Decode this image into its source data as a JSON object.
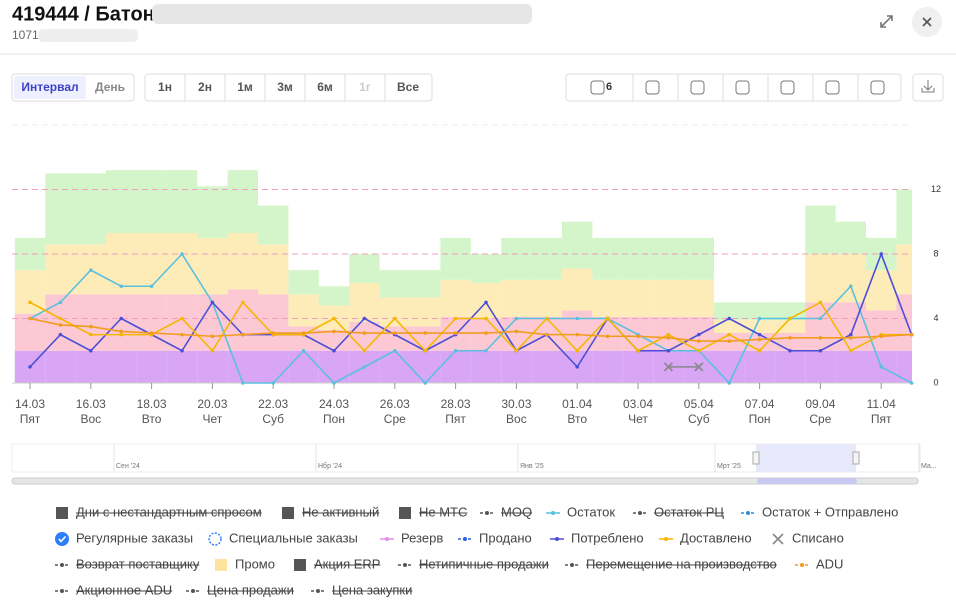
{
  "header": {
    "title": "419444 / Батон",
    "subtitle": "1071"
  },
  "toolbar": {
    "interval": [
      "Интервал",
      "День"
    ],
    "periods": [
      "1н",
      "2н",
      "1м",
      "3м",
      "6м",
      "1г",
      "Все"
    ],
    "active_period": null,
    "disabled_period": "1г",
    "truck_count": "6"
  },
  "navigator": {
    "labels": [
      "Сен '24",
      "Нбр '24",
      "Янв '25",
      "Мрт '25",
      "Ма..."
    ]
  },
  "chart_data": {
    "type": "line",
    "categories": [
      "14.03",
      null,
      "16.03",
      null,
      "18.03",
      null,
      "20.03",
      null,
      "22.03",
      null,
      "24.03",
      null,
      "26.03",
      null,
      "28.03",
      null,
      "30.03",
      null,
      "01.04",
      null,
      "03.04",
      null,
      "05.04",
      null,
      "07.04",
      null,
      "09.04",
      null,
      "11.04",
      null
    ],
    "weekdays": [
      "Пят",
      null,
      "Вос",
      null,
      "Вто",
      null,
      "Чет",
      null,
      "Суб",
      null,
      "Пон",
      null,
      "Сре",
      null,
      "Пят",
      null,
      "Вос",
      null,
      "Вто",
      null,
      "Чет",
      null,
      "Суб",
      null,
      "Пон",
      null,
      "Сре",
      null,
      "Пят",
      null
    ],
    "ylim": [
      0,
      16
    ],
    "yticks": [
      0,
      4,
      8,
      12
    ],
    "zones": [
      {
        "color": "#d8a6f5",
        "values": [
          2,
          2,
          2,
          2,
          2,
          2,
          2,
          2,
          2,
          2,
          2,
          2,
          2,
          2,
          2,
          2,
          2,
          2,
          2,
          2,
          2,
          2,
          2,
          2,
          2,
          2,
          2,
          2,
          2,
          2
        ]
      },
      {
        "color": "#fbc8d3",
        "values": [
          2.3,
          3.5,
          3.5,
          3.5,
          3.5,
          3.5,
          3.5,
          3.8,
          3.5,
          1.5,
          1.3,
          1.8,
          1.5,
          1.5,
          2.1,
          2,
          2.1,
          2.1,
          2.5,
          2.1,
          2.1,
          2.1,
          2.1,
          1.1,
          1.1,
          1.1,
          3,
          3,
          2.5,
          3.5
        ]
      },
      {
        "color": "#fdebb8",
        "values": [
          2.7,
          3.1,
          3.1,
          3.8,
          3.8,
          3.8,
          3.5,
          3.5,
          3.1,
          2,
          1.5,
          2.4,
          1.8,
          1.8,
          2.3,
          2.2,
          2.3,
          2.3,
          2.6,
          2.3,
          2.3,
          2.3,
          2.3,
          0.8,
          0.8,
          0.8,
          3,
          3,
          2.5,
          3.1
        ]
      },
      {
        "color": "#d3f5c9",
        "values": [
          2,
          4.4,
          4.4,
          3.9,
          3.9,
          3.9,
          3.2,
          3.9,
          2.4,
          1.5,
          1.2,
          1.8,
          1.7,
          1.7,
          2.6,
          1.8,
          2.6,
          2.6,
          2.9,
          2.6,
          2.6,
          2.6,
          2.6,
          1.1,
          1.1,
          1.1,
          3,
          2,
          2,
          3.4
        ]
      }
    ],
    "series": [
      {
        "name": "Остаток",
        "color": "#5bc0de",
        "values": [
          4,
          5,
          7,
          6,
          6,
          8,
          5,
          0,
          0,
          2,
          0,
          1,
          2,
          0,
          2,
          2,
          4,
          4,
          4,
          4,
          3,
          2,
          2,
          0,
          4,
          4,
          4,
          6,
          1,
          0
        ]
      },
      {
        "name": "Потреблено",
        "color": "#4b4fd8",
        "values": [
          1,
          3,
          2,
          4,
          3,
          2,
          5,
          3,
          3,
          3,
          2,
          4,
          3,
          2,
          3,
          5,
          2,
          3,
          1,
          4,
          2,
          2,
          3,
          4,
          3,
          2,
          2,
          3,
          8,
          3
        ]
      },
      {
        "name": "Доставлено",
        "color": "#f5b700",
        "values": [
          5,
          4,
          3,
          3,
          3,
          4,
          2,
          5,
          3,
          3,
          4,
          2,
          4,
          2,
          4,
          4,
          2,
          4,
          2,
          4,
          2,
          3,
          2,
          3,
          2,
          4,
          5,
          2,
          3,
          3
        ]
      },
      {
        "name": "ADU",
        "color": "#f29c1f",
        "values": [
          4,
          3.6,
          3.5,
          3.2,
          3.1,
          3,
          2.9,
          3,
          3.1,
          3.1,
          3.2,
          3.1,
          3.1,
          3.1,
          3.1,
          3.1,
          3.2,
          3,
          3,
          2.9,
          2.9,
          2.8,
          2.6,
          2.6,
          2.7,
          2.8,
          2.8,
          2.8,
          2.9,
          3
        ]
      },
      {
        "name": "Списано",
        "color": "#888888",
        "marker": "cross",
        "values": [
          null,
          null,
          null,
          null,
          null,
          null,
          null,
          null,
          null,
          null,
          null,
          null,
          null,
          null,
          null,
          null,
          null,
          null,
          null,
          null,
          null,
          1,
          1,
          null,
          null,
          null,
          null,
          null,
          null,
          null
        ]
      }
    ]
  },
  "legend": [
    [
      {
        "label": "Дни с нестандартным спросом",
        "marker": "square",
        "color": "#555555",
        "off": true
      },
      {
        "label": "Не активный",
        "marker": "square",
        "color": "#555555",
        "off": true
      },
      {
        "label": "Не МТС",
        "marker": "square",
        "color": "#555555",
        "off": true
      },
      {
        "label": "MOQ",
        "marker": "dash",
        "color": "#555555",
        "off": true
      },
      {
        "label": "Остаток",
        "marker": "line",
        "color": "#5bc0de",
        "off": false
      },
      {
        "label": "Остаток РЦ",
        "marker": "dash",
        "color": "#555555",
        "off": true
      },
      {
        "label": "Остаток + Отправлено",
        "marker": "dash",
        "color": "#2d8fdd",
        "off": false
      }
    ],
    [
      {
        "label": "Регулярные заказы",
        "marker": "check",
        "color": "#2d7ff9",
        "off": false
      },
      {
        "label": "Специальные заказы",
        "marker": "ring",
        "color": "#2d7ff9",
        "off": false
      },
      {
        "label": "Резерв",
        "marker": "line",
        "color": "#e08ee8",
        "off": false
      },
      {
        "label": "Продано",
        "marker": "dash",
        "color": "#2d5fe0",
        "off": false
      },
      {
        "label": "Потреблено",
        "marker": "line",
        "color": "#4b4fd8",
        "off": false
      },
      {
        "label": "Доставлено",
        "marker": "line",
        "color": "#f5b700",
        "off": false
      },
      {
        "label": "Списано",
        "marker": "cross",
        "color": "#888888",
        "off": false
      }
    ],
    [
      {
        "label": "Возврат поставщику",
        "marker": "dash",
        "color": "#555555",
        "off": true
      },
      {
        "label": "Промо",
        "marker": "square",
        "color": "#fde2a0",
        "off": false
      },
      {
        "label": "Акция ERP",
        "marker": "square",
        "color": "#555555",
        "off": true
      },
      {
        "label": "Нетипичные продажи",
        "marker": "dash",
        "color": "#555555",
        "off": true
      },
      {
        "label": "Перемещение на производство",
        "marker": "dash",
        "color": "#555555",
        "off": true
      },
      {
        "label": "ADU",
        "marker": "dash",
        "color": "#f29c1f",
        "off": false
      }
    ],
    [
      {
        "label": "Акционное ADU",
        "marker": "dash",
        "color": "#555555",
        "off": true
      },
      {
        "label": "Цена продажи",
        "marker": "dash",
        "color": "#555555",
        "off": true
      },
      {
        "label": "Цена закупки",
        "marker": "dash",
        "color": "#555555",
        "off": true
      }
    ]
  ]
}
